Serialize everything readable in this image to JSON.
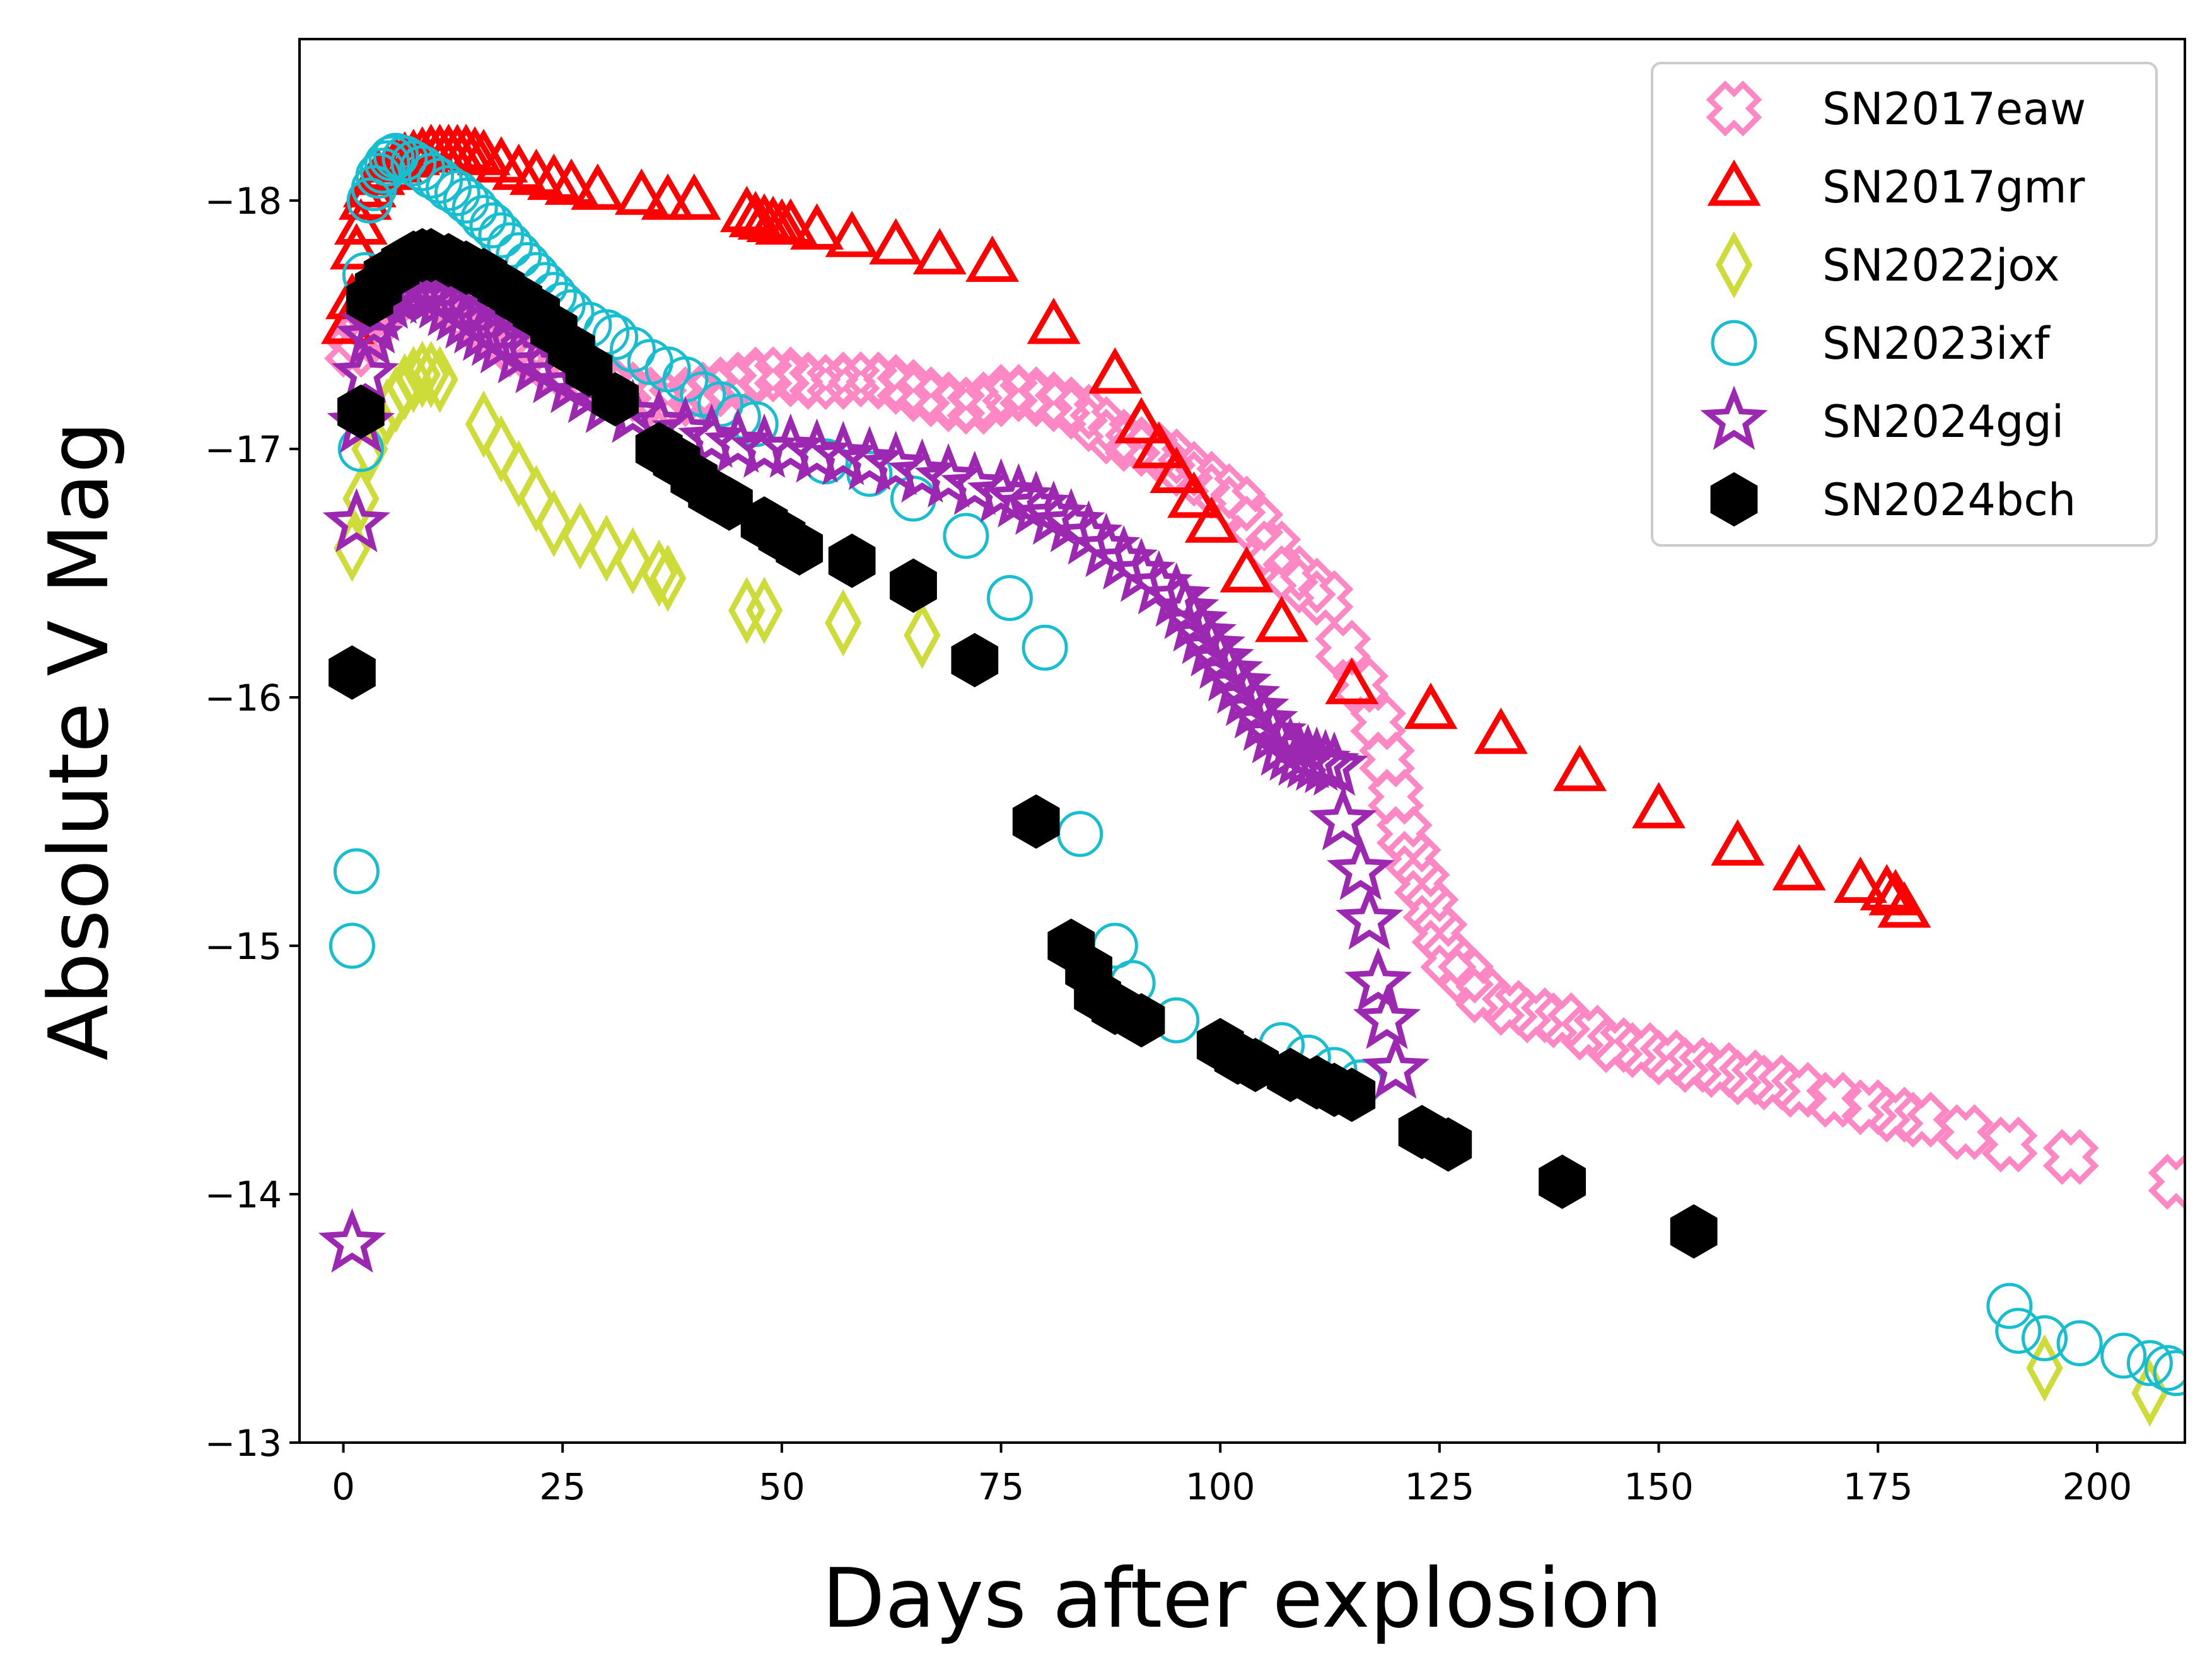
{
  "chart_data": {
    "type": "scatter",
    "title": "",
    "xlabel": "Days after explosion",
    "ylabel": "Absolute V Mag",
    "xlim": [
      -5,
      210
    ],
    "ylim": [
      -13,
      -18.65
    ],
    "y_inverted": true,
    "grid": false,
    "legend_position": "top-right",
    "x_ticks": [
      0,
      25,
      50,
      75,
      100,
      125,
      150,
      175,
      200
    ],
    "x_tick_labels": [
      "0",
      "25",
      "50",
      "75",
      "100",
      "125",
      "150",
      "175",
      "200"
    ],
    "y_ticks": [
      -18,
      -17,
      -16,
      -15,
      -14,
      -13
    ],
    "y_tick_labels": [
      "−18",
      "−17",
      "−16",
      "−15",
      "−14",
      "−13"
    ],
    "series": [
      {
        "name": "SN2017eaw",
        "marker": "x-open",
        "color": "#ff88c4",
        "x": [
          1,
          2,
          3,
          4,
          5,
          6,
          7,
          8,
          9,
          10,
          11,
          12,
          13,
          14,
          15,
          16,
          17,
          18,
          19,
          20,
          22,
          24,
          26,
          28,
          30,
          32,
          34,
          36,
          38,
          40,
          42,
          44,
          46,
          48,
          50,
          52,
          54,
          56,
          58,
          60,
          62,
          64,
          66,
          68,
          70,
          72,
          74,
          76,
          78,
          80,
          82,
          84,
          86,
          88,
          90,
          92,
          94,
          96,
          98,
          100,
          102,
          104,
          106,
          108,
          110,
          112,
          114,
          116,
          118,
          119,
          120,
          121,
          122,
          123,
          124,
          125,
          126,
          128,
          130,
          133,
          136,
          139,
          142,
          145,
          148,
          151,
          154,
          157,
          160,
          163,
          166,
          170,
          174,
          177,
          180,
          185,
          190,
          197,
          209
        ],
        "y": [
          -17.4,
          -17.45,
          -17.5,
          -17.55,
          -17.6,
          -17.62,
          -17.64,
          -17.65,
          -17.66,
          -17.65,
          -17.63,
          -17.6,
          -17.58,
          -17.55,
          -17.52,
          -17.5,
          -17.48,
          -17.45,
          -17.43,
          -17.4,
          -17.37,
          -17.33,
          -17.3,
          -17.28,
          -17.26,
          -17.24,
          -17.22,
          -17.2,
          -17.2,
          -17.22,
          -17.24,
          -17.26,
          -17.28,
          -17.3,
          -17.3,
          -17.28,
          -17.27,
          -17.27,
          -17.28,
          -17.28,
          -17.27,
          -17.25,
          -17.22,
          -17.2,
          -17.18,
          -17.17,
          -17.2,
          -17.23,
          -17.22,
          -17.2,
          -17.18,
          -17.15,
          -17.1,
          -17.05,
          -17.02,
          -17.0,
          -16.97,
          -16.92,
          -16.88,
          -16.83,
          -16.78,
          -16.7,
          -16.6,
          -16.5,
          -16.45,
          -16.4,
          -16.2,
          -16.05,
          -15.9,
          -15.75,
          -15.6,
          -15.45,
          -15.35,
          -15.25,
          -15.15,
          -15.05,
          -14.95,
          -14.88,
          -14.8,
          -14.75,
          -14.72,
          -14.7,
          -14.65,
          -14.6,
          -14.58,
          -14.55,
          -14.52,
          -14.5,
          -14.47,
          -14.45,
          -14.42,
          -14.38,
          -14.35,
          -14.32,
          -14.3,
          -14.25,
          -14.2,
          -14.15,
          -14.05
        ]
      },
      {
        "name": "SN2017gmr",
        "marker": "triangle-open",
        "color": "#ff0000",
        "x": [
          0.5,
          1,
          1.5,
          2,
          2.5,
          3,
          4,
          5,
          6,
          7,
          8,
          9,
          10,
          11,
          12,
          13,
          14,
          15,
          16,
          18,
          20,
          22,
          24,
          26,
          29,
          34,
          37,
          40,
          46,
          47,
          48,
          49,
          50,
          51,
          54,
          58,
          63,
          68,
          74,
          81,
          88,
          91,
          93,
          95,
          97,
          99,
          103,
          107,
          115,
          124,
          132,
          141,
          150,
          159,
          166,
          173,
          176,
          177,
          178
        ],
        "y": [
          -17.5,
          -17.6,
          -17.8,
          -17.9,
          -18.0,
          -18.05,
          -18.1,
          -18.12,
          -18.15,
          -18.17,
          -18.18,
          -18.19,
          -18.2,
          -18.2,
          -18.2,
          -18.2,
          -18.2,
          -18.19,
          -18.18,
          -18.15,
          -18.12,
          -18.1,
          -18.08,
          -18.06,
          -18.04,
          -18.02,
          -18.0,
          -18.0,
          -17.95,
          -17.93,
          -17.92,
          -17.91,
          -17.9,
          -17.9,
          -17.88,
          -17.85,
          -17.82,
          -17.78,
          -17.75,
          -17.5,
          -17.3,
          -17.1,
          -17.0,
          -16.9,
          -16.8,
          -16.7,
          -16.5,
          -16.3,
          -16.05,
          -15.95,
          -15.85,
          -15.7,
          -15.55,
          -15.4,
          -15.3,
          -15.25,
          -15.22,
          -15.2,
          -15.15
        ]
      },
      {
        "name": "SN2022jox",
        "marker": "diamond-open",
        "color": "#cddc39",
        "x": [
          1,
          2,
          3,
          4,
          5,
          6,
          7,
          8,
          9,
          10,
          11,
          16,
          18,
          20,
          22,
          24,
          27,
          30,
          33,
          36,
          37,
          46,
          48,
          57,
          66,
          194,
          206
        ],
        "y": [
          -16.6,
          -16.8,
          -17.0,
          -17.1,
          -17.15,
          -17.2,
          -17.25,
          -17.28,
          -17.3,
          -17.3,
          -17.28,
          -17.1,
          -17.0,
          -16.9,
          -16.8,
          -16.7,
          -16.65,
          -16.6,
          -16.55,
          -16.5,
          -16.48,
          -16.35,
          -16.35,
          -16.3,
          -16.25,
          -13.3,
          -13.2
        ]
      },
      {
        "name": "SN2023ixf",
        "marker": "circle-open",
        "color": "#17becf",
        "x": [
          1,
          1.5,
          2,
          2.5,
          3,
          3.5,
          4,
          4.5,
          5,
          5.5,
          6,
          7,
          8,
          9,
          10,
          11,
          12,
          13,
          14,
          15,
          16,
          17,
          18,
          19,
          20,
          21,
          22,
          23,
          24,
          25,
          26,
          28,
          30,
          31,
          33,
          35,
          37,
          39,
          41,
          43,
          45,
          47,
          55,
          60,
          65,
          71,
          76,
          80,
          84,
          88,
          90,
          95,
          107,
          110,
          113,
          116,
          190,
          191,
          194,
          198,
          203,
          206,
          208,
          209
        ],
        "y": [
          -15.0,
          -15.3,
          -17.0,
          -17.7,
          -18.0,
          -18.05,
          -18.1,
          -18.12,
          -18.15,
          -18.17,
          -18.18,
          -18.17,
          -18.15,
          -18.13,
          -18.1,
          -18.08,
          -18.05,
          -18.03,
          -18.0,
          -17.97,
          -17.93,
          -17.9,
          -17.86,
          -17.82,
          -17.78,
          -17.74,
          -17.7,
          -17.66,
          -17.62,
          -17.58,
          -17.55,
          -17.5,
          -17.47,
          -17.45,
          -17.4,
          -17.35,
          -17.32,
          -17.28,
          -17.22,
          -17.18,
          -17.13,
          -17.1,
          -16.95,
          -16.9,
          -16.8,
          -16.65,
          -16.4,
          -16.2,
          -15.45,
          -15.0,
          -14.85,
          -14.7,
          -14.6,
          -14.55,
          -14.5,
          -14.45,
          -13.55,
          -13.45,
          -13.42,
          -13.4,
          -13.35,
          -13.32,
          -13.3,
          -13.28
        ]
      },
      {
        "name": "SN2024ggi",
        "marker": "star-open",
        "color": "#9c27b0",
        "x": [
          1,
          1.5,
          2,
          2.5,
          3,
          3.5,
          4,
          5,
          6,
          7,
          8,
          9,
          10,
          11,
          12,
          13,
          14,
          15,
          16,
          17,
          18,
          20,
          22,
          24,
          26,
          28,
          30,
          33,
          36,
          39,
          42,
          45,
          48,
          51,
          54,
          57,
          60,
          63,
          66,
          69,
          72,
          75,
          77,
          79,
          81,
          83,
          85,
          87,
          89,
          91,
          93,
          95,
          96,
          97,
          98,
          99,
          100,
          101,
          102,
          103,
          104,
          105,
          106,
          107,
          108,
          109,
          110,
          111,
          112,
          113,
          114,
          116,
          117,
          118,
          119,
          120
        ],
        "y": [
          -13.8,
          -16.7,
          -17.1,
          -17.3,
          -17.45,
          -17.5,
          -17.55,
          -17.6,
          -17.62,
          -17.64,
          -17.65,
          -17.64,
          -17.62,
          -17.6,
          -17.57,
          -17.55,
          -17.52,
          -17.5,
          -17.47,
          -17.45,
          -17.42,
          -17.38,
          -17.34,
          -17.3,
          -17.26,
          -17.22,
          -17.18,
          -17.14,
          -17.1,
          -17.07,
          -17.04,
          -17.02,
          -17.0,
          -17.0,
          -16.98,
          -16.97,
          -16.95,
          -16.93,
          -16.9,
          -16.88,
          -16.85,
          -16.82,
          -16.8,
          -16.77,
          -16.73,
          -16.7,
          -16.65,
          -16.6,
          -16.55,
          -16.5,
          -16.45,
          -16.4,
          -16.35,
          -16.3,
          -16.25,
          -16.2,
          -16.15,
          -16.1,
          -16.05,
          -16.0,
          -15.95,
          -15.9,
          -15.85,
          -15.8,
          -15.78,
          -15.76,
          -15.75,
          -15.74,
          -15.73,
          -15.72,
          -15.5,
          -15.3,
          -15.1,
          -14.85,
          -14.7,
          -14.5
        ]
      },
      {
        "name": "SN2024bch",
        "marker": "hexagon-filled",
        "color": "#000000",
        "x": [
          1,
          2,
          3,
          4,
          5,
          6,
          7,
          8,
          9,
          10,
          12,
          14,
          16,
          18,
          20,
          22,
          24,
          26,
          28,
          31,
          36,
          38,
          40,
          42,
          44,
          48,
          50,
          52,
          58,
          65,
          72,
          79,
          83,
          85,
          86,
          88,
          91,
          100,
          102,
          104,
          108,
          111,
          113,
          115,
          123,
          126,
          139,
          154
        ],
        "y": [
          -16.1,
          -17.15,
          -17.6,
          -17.65,
          -17.7,
          -17.72,
          -17.75,
          -17.77,
          -17.78,
          -17.78,
          -17.76,
          -17.73,
          -17.7,
          -17.65,
          -17.6,
          -17.55,
          -17.48,
          -17.4,
          -17.32,
          -17.2,
          -17.0,
          -16.95,
          -16.88,
          -16.82,
          -16.78,
          -16.7,
          -16.65,
          -16.6,
          -16.55,
          -16.45,
          -16.15,
          -15.5,
          -15.0,
          -14.9,
          -14.8,
          -14.75,
          -14.7,
          -14.6,
          -14.55,
          -14.52,
          -14.48,
          -14.45,
          -14.42,
          -14.4,
          -14.25,
          -14.2,
          -14.05,
          -13.85
        ]
      }
    ]
  }
}
